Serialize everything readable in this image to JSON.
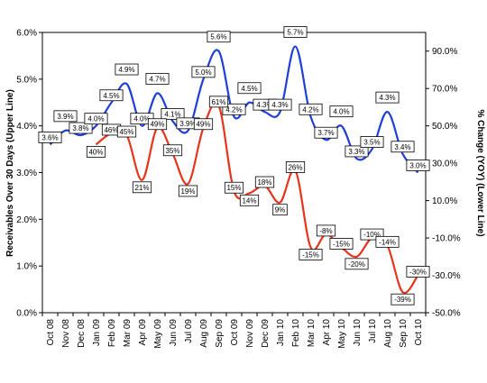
{
  "chart_data": {
    "type": "line",
    "categories": [
      "Oct 08",
      "Nov 08",
      "Dec 08",
      "Jan 09",
      "Feb 09",
      "Mar 09",
      "Apr 09",
      "May 09",
      "Jun 09",
      "Jul 09",
      "Aug 09",
      "Sep 09",
      "Oct 09",
      "Nov 09",
      "Dec 09",
      "Jan 10",
      "Feb 10",
      "Mar 10",
      "Apr 10",
      "May 10",
      "Jun 10",
      "Jul 10",
      "Aug 10",
      "Sep 10",
      "Oct 10"
    ],
    "ylabel": "Receivables Over 30 Days (Upper Line)",
    "y2label": "% Change (YOY) (Lower Line)",
    "ylim": [
      0,
      6
    ],
    "y2lim": [
      -50,
      100
    ],
    "yticks": [
      "0.0%",
      "1.0%",
      "2.0%",
      "3.0%",
      "4.0%",
      "5.0%",
      "6.0%"
    ],
    "y2ticks": [
      "-50.0%",
      "-30.0%",
      "-10.0%",
      "10.0%",
      "30.0%",
      "50.0%",
      "70.0%",
      "90.0%"
    ],
    "series": [
      {
        "axis": "left",
        "color": "#1f3fd8",
        "values": [
          3.6,
          3.9,
          3.8,
          4.0,
          4.5,
          4.9,
          4.0,
          4.7,
          4.1,
          3.9,
          5.0,
          5.6,
          4.2,
          4.5,
          4.3,
          4.3,
          5.7,
          4.2,
          3.7,
          4.0,
          3.3,
          3.5,
          4.3,
          3.4,
          3.0
        ],
        "labels": [
          "3.6%",
          "3.9%",
          "3.8%",
          "4.0%",
          "4.5%",
          "4.9%",
          "4.0%",
          "4.7%",
          "4.1%",
          "3.9%",
          "5.0%",
          "5.6%",
          "4.2%",
          "4.5%",
          "4.3%",
          "4.3%",
          "5.7%",
          "4.2%",
          "3.7%",
          "4.0%",
          "3.3%",
          "3.5%",
          "4.3%",
          "3.4%",
          "3.0%"
        ]
      },
      {
        "axis": "right",
        "color": "#e8341c",
        "values": [
          null,
          null,
          null,
          40,
          46,
          45,
          21,
          49,
          35,
          19,
          49,
          61,
          15,
          14,
          18,
          9,
          26,
          -15,
          -8,
          -15,
          -20,
          -10,
          -14,
          -39,
          -30
        ],
        "labels": [
          "",
          "",
          "",
          "40%",
          "46%",
          "45%",
          "21%",
          "49%",
          "35%",
          "19%",
          "49%",
          "61%",
          "15%",
          "14%",
          "18%",
          "9%",
          "26%",
          "-15%",
          "-8%",
          "-15%",
          "-20%",
          "-10%",
          "-14%",
          "-39%",
          "-30%"
        ]
      }
    ]
  }
}
